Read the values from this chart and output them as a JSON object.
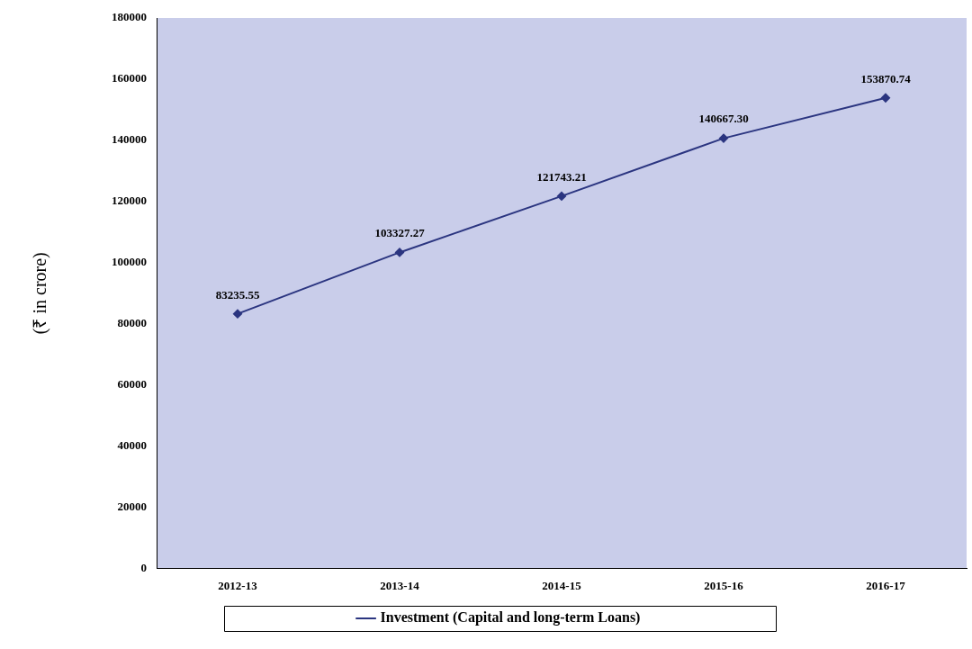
{
  "chart_data": {
    "type": "line",
    "ylabel": "(₹ in crore)",
    "categories": [
      "2012-13",
      "2013-14",
      "2014-15",
      "2015-16",
      "2016-17"
    ],
    "series": [
      {
        "name": "Investment (Capital and long-term Loans)",
        "color": "#2b3580",
        "values": [
          83235.55,
          103327.27,
          121743.21,
          140667.3,
          153870.74
        ],
        "value_labels": [
          "83235.55",
          "103327.27",
          "121743.21",
          "140667.30",
          "153870.74"
        ]
      }
    ],
    "ylim": [
      0,
      180000
    ],
    "yticks": [
      0,
      20000,
      40000,
      60000,
      80000,
      100000,
      120000,
      140000,
      160000,
      180000
    ],
    "grid": false,
    "legend": "bottom",
    "marker": "diamond",
    "line_style": "solid"
  }
}
